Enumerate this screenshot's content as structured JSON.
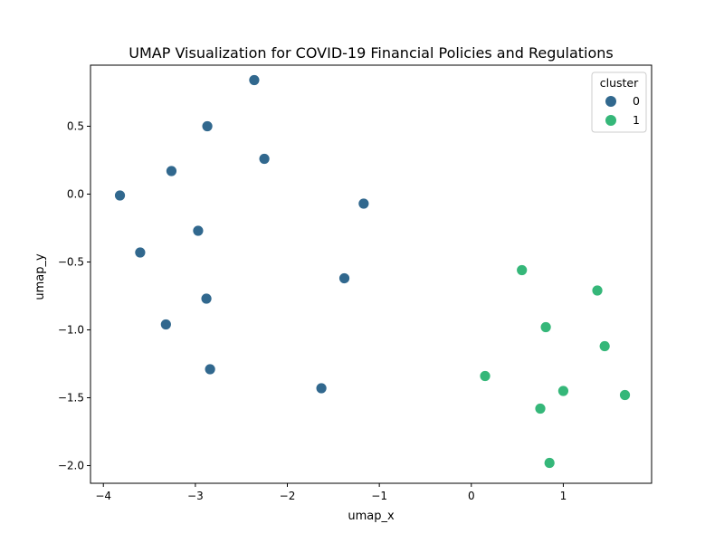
{
  "chart_data": {
    "type": "scatter",
    "title": "UMAP Visualization for COVID-19 Financial Policies and Regulations",
    "xlabel": "umap_x",
    "ylabel": "umap_y",
    "xlim": [
      -4.14,
      1.96
    ],
    "ylim": [
      -2.13,
      0.95
    ],
    "x_ticks": [
      {
        "value": -4,
        "label": "−4"
      },
      {
        "value": -3,
        "label": "−3"
      },
      {
        "value": -2,
        "label": "−2"
      },
      {
        "value": -1,
        "label": "−1"
      },
      {
        "value": 0,
        "label": "0"
      },
      {
        "value": 1,
        "label": "1"
      }
    ],
    "y_ticks": [
      {
        "value": 0.5,
        "label": "0.5"
      },
      {
        "value": 0.0,
        "label": "0.0"
      },
      {
        "value": -0.5,
        "label": "−0.5"
      },
      {
        "value": -1.0,
        "label": "−1.0"
      },
      {
        "value": -1.5,
        "label": "−1.5"
      },
      {
        "value": -2.0,
        "label": "−2.0"
      }
    ],
    "grid": false,
    "legend": {
      "title": "cluster",
      "placement": "top-right"
    },
    "series": [
      {
        "name": "0",
        "color": "#31688e",
        "points": [
          {
            "x": -2.36,
            "y": 0.84
          },
          {
            "x": -2.87,
            "y": 0.5
          },
          {
            "x": -2.25,
            "y": 0.26
          },
          {
            "x": -3.26,
            "y": 0.17
          },
          {
            "x": -3.82,
            "y": -0.01
          },
          {
            "x": -1.17,
            "y": -0.07
          },
          {
            "x": -2.97,
            "y": -0.27
          },
          {
            "x": -3.6,
            "y": -0.43
          },
          {
            "x": -1.38,
            "y": -0.62
          },
          {
            "x": -2.88,
            "y": -0.77
          },
          {
            "x": -3.32,
            "y": -0.96
          },
          {
            "x": -2.84,
            "y": -1.29
          },
          {
            "x": -1.63,
            "y": -1.43
          }
        ]
      },
      {
        "name": "1",
        "color": "#35b779",
        "points": [
          {
            "x": 0.55,
            "y": -0.56
          },
          {
            "x": 1.37,
            "y": -0.71
          },
          {
            "x": 0.81,
            "y": -0.98
          },
          {
            "x": 1.45,
            "y": -1.12
          },
          {
            "x": 0.15,
            "y": -1.34
          },
          {
            "x": 1.0,
            "y": -1.45
          },
          {
            "x": 1.67,
            "y": -1.48
          },
          {
            "x": 0.75,
            "y": -1.58
          },
          {
            "x": 0.85,
            "y": -1.98
          }
        ]
      }
    ]
  }
}
